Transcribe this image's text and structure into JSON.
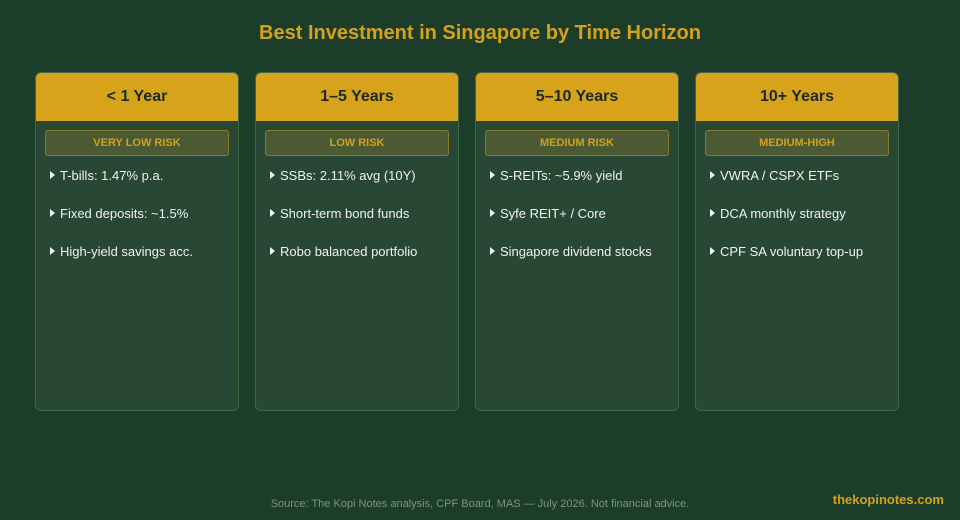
{
  "header": {
    "title": "Best Investment in Singapore by Time Horizon"
  },
  "columns": [
    {
      "horizon": "< 1 Year",
      "risk": "VERY LOW RISK",
      "items": [
        "T-bills: 1.47% p.a.",
        "Fixed deposits: ~1.5%",
        "High-yield savings acc."
      ]
    },
    {
      "horizon": "1–5 Years",
      "risk": "LOW RISK",
      "items": [
        "SSBs: 2.11% avg (10Y)",
        "Short-term bond funds",
        "Robo balanced portfolio"
      ]
    },
    {
      "horizon": "5–10 Years",
      "risk": "MEDIUM RISK",
      "items": [
        "S-REITs: ~5.9% yield",
        "Syfe REIT+ / Core",
        "Singapore dividend stocks"
      ]
    },
    {
      "horizon": "10+ Years",
      "risk": "MEDIUM-HIGH",
      "items": [
        "VWRA / CSPX ETFs",
        "DCA monthly strategy",
        "CPF SA voluntary top-up"
      ]
    }
  ],
  "footer": {
    "source": "Source: The Kopi Notes analysis, CPF Board, MAS — July 2026. Not financial advice.",
    "brand": "thekopinotes.com"
  }
}
